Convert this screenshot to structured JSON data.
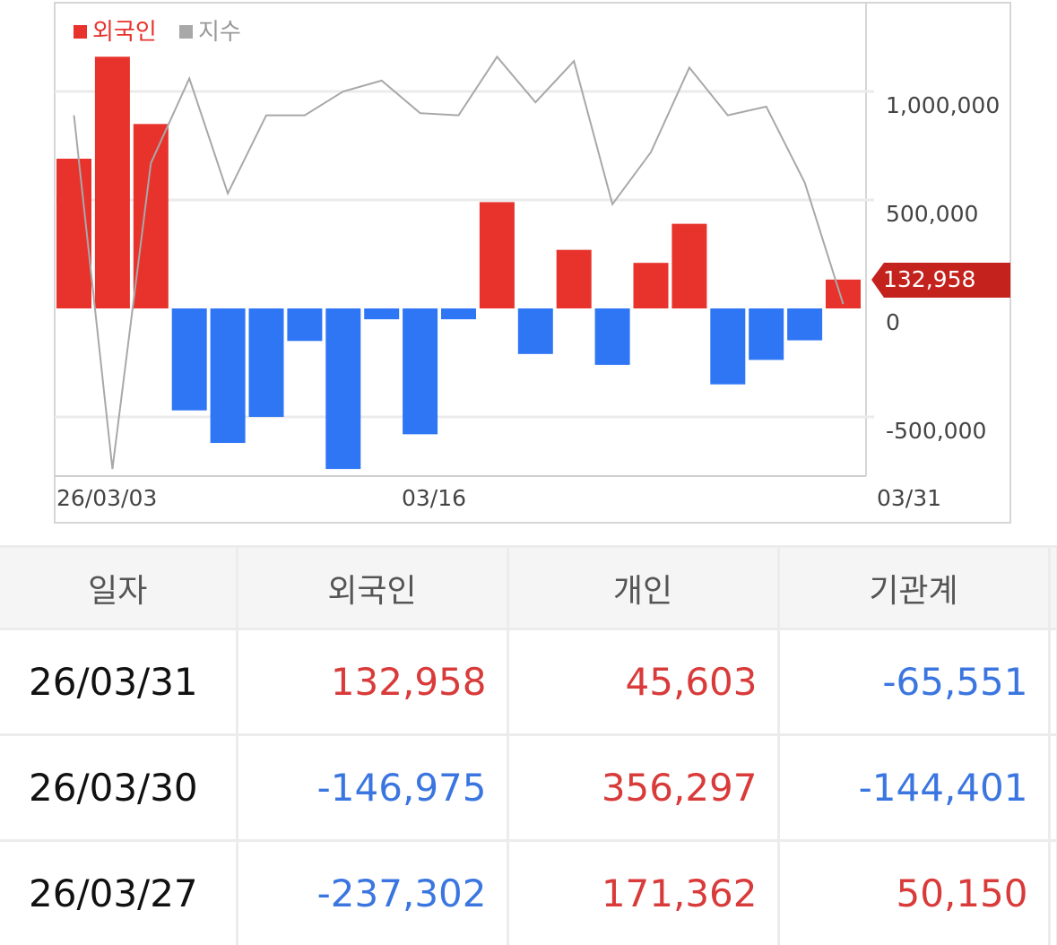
{
  "chart": {
    "legend": [
      {
        "label": "외국인",
        "color": "#e8322c"
      },
      {
        "label": "지수",
        "color": "#a8a8a8"
      }
    ],
    "y_ticks": [
      "1,000,000",
      "500,000",
      "0",
      "-500,000"
    ],
    "x_ticks": [
      "26/03/03",
      "03/16",
      "03/31"
    ],
    "current_badge": "132,958"
  },
  "chart_data": {
    "type": "bar",
    "ylim": [
      -700000,
      1400000
    ],
    "y_tick_values": [
      1000000,
      500000,
      0,
      -500000
    ],
    "x_tick_positions": [
      0,
      9,
      20
    ],
    "series": [
      {
        "name": "외국인",
        "values": [
          690000,
          1160000,
          850000,
          -470000,
          -620000,
          -500000,
          -150000,
          -740000,
          -50000,
          -580000,
          -50000,
          490000,
          -210000,
          270000,
          -260000,
          210000,
          390000,
          -350000,
          -237302,
          -146975,
          132958
        ],
        "pos_color": "#e8322c",
        "neg_color": "#2f76f5"
      },
      {
        "name": "지수",
        "values": [
          890000,
          -740000,
          670000,
          1060000,
          530000,
          890000,
          890000,
          1000000,
          1050000,
          900000,
          890000,
          1160000,
          950000,
          1140000,
          480000,
          720000,
          1110000,
          890000,
          930000,
          580000,
          20000
        ],
        "color": "#a8a8a8"
      }
    ]
  },
  "table": {
    "headers": [
      "일자",
      "외국인",
      "개인",
      "기관계"
    ],
    "rows": [
      {
        "date": "26/03/31",
        "foreign": "132,958",
        "individual": "45,603",
        "institution": "-65,551"
      },
      {
        "date": "26/03/30",
        "foreign": "-146,975",
        "individual": "356,297",
        "institution": "-144,401"
      },
      {
        "date": "26/03/27",
        "foreign": "-237,302",
        "individual": "171,362",
        "institution": "50,150"
      }
    ]
  }
}
